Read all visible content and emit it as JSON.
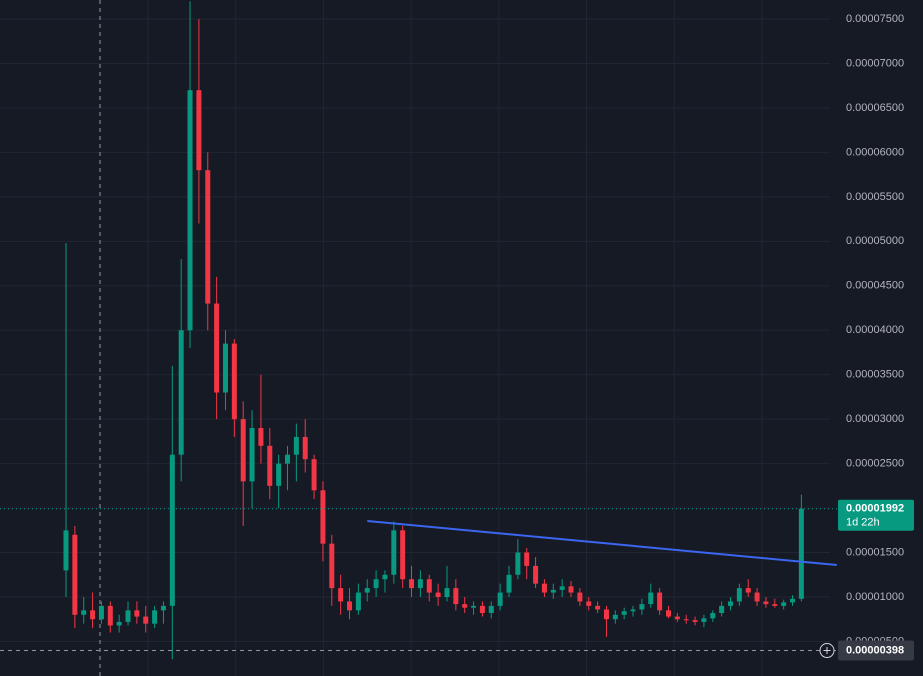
{
  "chart_data": {
    "type": "candlestick",
    "up_color": "#089981",
    "down_color": "#f23645",
    "grid": true,
    "ylim": [
      1.116e-06,
      7.714e-05
    ],
    "yticks": [
      {
        "value": 5e-06,
        "label": "0.00000500"
      },
      {
        "value": 1e-05,
        "label": "0.00001000"
      },
      {
        "value": 1.5e-05,
        "label": "0.00001500"
      },
      {
        "value": 2e-05,
        "label": "0.00002000"
      },
      {
        "value": 2.5e-05,
        "label": "0.00002500"
      },
      {
        "value": 3e-05,
        "label": "0.00003000"
      },
      {
        "value": 3.5e-05,
        "label": "0.00003500"
      },
      {
        "value": 4e-05,
        "label": "0.00004000"
      },
      {
        "value": 4.5e-05,
        "label": "0.00004500"
      },
      {
        "value": 5e-05,
        "label": "0.00005000"
      },
      {
        "value": 5.5e-05,
        "label": "0.00005500"
      },
      {
        "value": 6e-05,
        "label": "0.00006000"
      },
      {
        "value": 6.5e-05,
        "label": "0.00006500"
      },
      {
        "value": 7e-05,
        "label": "0.00007000"
      },
      {
        "value": 7.5e-05,
        "label": "0.00007500"
      }
    ],
    "open": [
      1.3e-05,
      1.7e-05,
      8e-06,
      8.5e-06,
      7.5e-06,
      9e-06,
      6.8e-06,
      7.2e-06,
      8.5e-06,
      7.8e-06,
      7e-06,
      8.5e-06,
      9e-06,
      2.6e-05,
      4e-05,
      6.7e-05,
      5.8e-05,
      4.3e-05,
      3.3e-05,
      3.85e-05,
      3e-05,
      2.3e-05,
      2.9e-05,
      2.7e-05,
      2.25e-05,
      2.5e-05,
      2.6e-05,
      2.8e-05,
      2.55e-05,
      2.2e-05,
      1.6e-05,
      1.1e-05,
      9.5e-06,
      8.5e-06,
      1.05e-05,
      1.1e-05,
      1.2e-05,
      1.25e-05,
      1.75e-05,
      1.2e-05,
      1.1e-05,
      1.2e-05,
      1.05e-05,
      1e-05,
      1.1e-05,
      9.2e-06,
      8.8e-06,
      9e-06,
      8.2e-06,
      9e-06,
      1.05e-05,
      1.25e-05,
      1.5e-05,
      1.35e-05,
      1.15e-05,
      1.05e-05,
      1.08e-05,
      1.12e-05,
      1.05e-05,
      9.5e-06,
      9e-06,
      8.6e-06,
      7.5e-06,
      8e-06,
      8.4e-06,
      8.6e-06,
      9.2e-06,
      1.05e-05,
      8.5e-06,
      7.8e-06,
      7.5e-06,
      7.4e-06,
      7.2e-06,
      7.6e-06,
      8.2e-06,
      9e-06,
      9.5e-06,
      1.1e-05,
      1.05e-05,
      9.5e-06,
      9.2e-06,
      9e-06,
      9.4e-06,
      9.8e-06
    ],
    "high": [
      4.98e-05,
      1.8e-05,
      1e-05,
      1.05e-05,
      9.5e-06,
      9.5e-06,
      8e-06,
      9.5e-06,
      9.5e-06,
      9e-06,
      9e-06,
      9.5e-06,
      3.6e-05,
      4.8e-05,
      7.7e-05,
      7.5e-05,
      6e-05,
      4.6e-05,
      4e-05,
      3.9e-05,
      3.2e-05,
      3.1e-05,
      3.5e-05,
      2.9e-05,
      2.6e-05,
      2.7e-05,
      2.95e-05,
      3e-05,
      2.6e-05,
      2.3e-05,
      1.7e-05,
      1.25e-05,
      1.1e-05,
      1.15e-05,
      1.2e-05,
      1.3e-05,
      1.3e-05,
      1.85e-05,
      1.8e-05,
      1.35e-05,
      1.3e-05,
      1.25e-05,
      1.15e-05,
      1.35e-05,
      1.2e-05,
      1e-05,
      9.5e-06,
      9.5e-06,
      9.5e-06,
      1.15e-05,
      1.35e-05,
      1.65e-05,
      1.55e-05,
      1.45e-05,
      1.2e-05,
      1.15e-05,
      1.2e-05,
      1.18e-05,
      1.1e-05,
      1e-05,
      9.5e-06,
      9e-06,
      8.5e-06,
      8.8e-06,
      9e-06,
      9.8e-06,
      1.15e-05,
      1.1e-05,
      9e-06,
      8.2e-06,
      8e-06,
      7.8e-06,
      8e-06,
      8.5e-06,
      9.5e-06,
      1e-05,
      1.15e-05,
      1.2e-05,
      1.1e-05,
      1e-05,
      9.8e-06,
      9.7e-06,
      1.02e-05,
      2.15e-05
    ],
    "low": [
      1e-05,
      6.5e-06,
      7e-06,
      6.5e-06,
      7e-06,
      6e-06,
      6e-06,
      6.8e-06,
      7e-06,
      6e-06,
      6.5e-06,
      7e-06,
      3e-06,
      2.3e-05,
      3.8e-05,
      5.2e-05,
      4e-05,
      3e-05,
      3.1e-05,
      2.8e-05,
      1.8e-05,
      2e-05,
      2.5e-05,
      2.1e-05,
      2e-05,
      2.2e-05,
      2.3e-05,
      2.4e-05,
      2.1e-05,
      1.4e-05,
      9e-06,
      8e-06,
      7.5e-06,
      8e-06,
      9.5e-06,
      1e-05,
      1.05e-05,
      1.15e-05,
      1.1e-05,
      1e-05,
      1e-05,
      9.5e-06,
      9e-06,
      9.5e-06,
      8.5e-06,
      8.2e-06,
      8e-06,
      7.8e-06,
      7.6e-06,
      8.5e-06,
      1e-05,
      1.2e-05,
      1.2e-05,
      1.1e-05,
      1e-05,
      9.8e-06,
      1e-05,
      1e-05,
      9e-06,
      8.5e-06,
      8.2e-06,
      5.5e-06,
      7e-06,
      7.5e-06,
      7.8e-06,
      8e-06,
      8.8e-06,
      8e-06,
      7.6e-06,
      7.2e-06,
      7e-06,
      6.8e-06,
      6.6e-06,
      7.2e-06,
      7.8e-06,
      8.5e-06,
      9e-06,
      1e-05,
      9e-06,
      8.8e-06,
      8.8e-06,
      8.6e-06,
      9e-06,
      9.5e-06
    ],
    "close": [
      1.75e-05,
      8e-06,
      8.5e-06,
      7.5e-06,
      9e-06,
      6.8e-06,
      7.2e-06,
      8.5e-06,
      7.8e-06,
      7e-06,
      8.5e-06,
      9e-06,
      2.6e-05,
      4e-05,
      6.7e-05,
      5.8e-05,
      4.3e-05,
      3.3e-05,
      3.85e-05,
      3e-05,
      2.3e-05,
      2.9e-05,
      2.7e-05,
      2.25e-05,
      2.5e-05,
      2.6e-05,
      2.8e-05,
      2.55e-05,
      2.2e-05,
      1.6e-05,
      1.1e-05,
      9.5e-06,
      8.5e-06,
      1.05e-05,
      1.1e-05,
      1.2e-05,
      1.25e-05,
      1.75e-05,
      1.2e-05,
      1.1e-05,
      1.2e-05,
      1.05e-05,
      1e-05,
      1.1e-05,
      9.2e-06,
      8.8e-06,
      9e-06,
      8.2e-06,
      9e-06,
      1.05e-05,
      1.25e-05,
      1.5e-05,
      1.35e-05,
      1.15e-05,
      1.05e-05,
      1.08e-05,
      1.12e-05,
      1.05e-05,
      9.5e-06,
      9e-06,
      8.6e-06,
      7.5e-06,
      8e-06,
      8.4e-06,
      8.6e-06,
      9.2e-06,
      1.05e-05,
      8.5e-06,
      7.8e-06,
      7.5e-06,
      7.4e-06,
      7.2e-06,
      7.6e-06,
      8.2e-06,
      9e-06,
      9.5e-06,
      1.1e-05,
      1.05e-05,
      9.5e-06,
      9.2e-06,
      9e-06,
      9.4e-06,
      9.8e-06,
      1.992e-05
    ],
    "trendline": {
      "color": "#3a66f0",
      "x": [
        34,
        87
      ],
      "values": [
        1.855e-05,
        1.36e-05
      ]
    },
    "last_price": {
      "value": 1.992e-05,
      "label": "0.00001992",
      "countdown": "1d 22h"
    },
    "crosshair_price": {
      "value": 3.98e-06,
      "label": "0.00000398"
    }
  }
}
